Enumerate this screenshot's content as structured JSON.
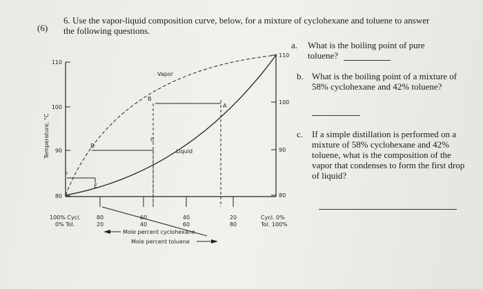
{
  "header": {
    "number": "(6)",
    "question": "6. Use the vapor-liquid composition curve, below, for a mixture of cyclohexane and toluene to answer the following questions."
  },
  "diagram": {
    "y_axis_label": "Temperature, °C",
    "left_ticks": [
      "110",
      "100",
      "90",
      "80"
    ],
    "right_ticks": [
      "110",
      "100",
      "90",
      "80"
    ],
    "vapor_label": "Vapor",
    "liquid_label": "Liquid",
    "points": [
      "A",
      "B",
      "C",
      "D",
      "E",
      "F"
    ],
    "left_cyclohexane": "100% Cycl.",
    "left_toluene": "0% Tol.",
    "cyclohexane_ticks": [
      "80",
      "60",
      "40",
      "20"
    ],
    "toluene_ticks": [
      "20",
      "40",
      "60",
      "80"
    ],
    "right_cyclohexane": "Cycl. 0%",
    "right_toluene": "Tol. 100%",
    "cyclohexane_axis": "Mole percent cyclohexane",
    "toluene_axis": "Mole percent toluene"
  },
  "questions": [
    {
      "letter": "a.",
      "text": "What is the boiling point of pure toluene?"
    },
    {
      "letter": "b.",
      "text": "What is the boiling point of a mixture of 58% cyclohexane and 42% toluene?"
    },
    {
      "letter": "c.",
      "text": "If a simple distillation is performed on a mixture of 58% cyclohexane and 42% toluene, what is the composition of the vapor that condenses to form the first drop of liquid?"
    }
  ]
}
